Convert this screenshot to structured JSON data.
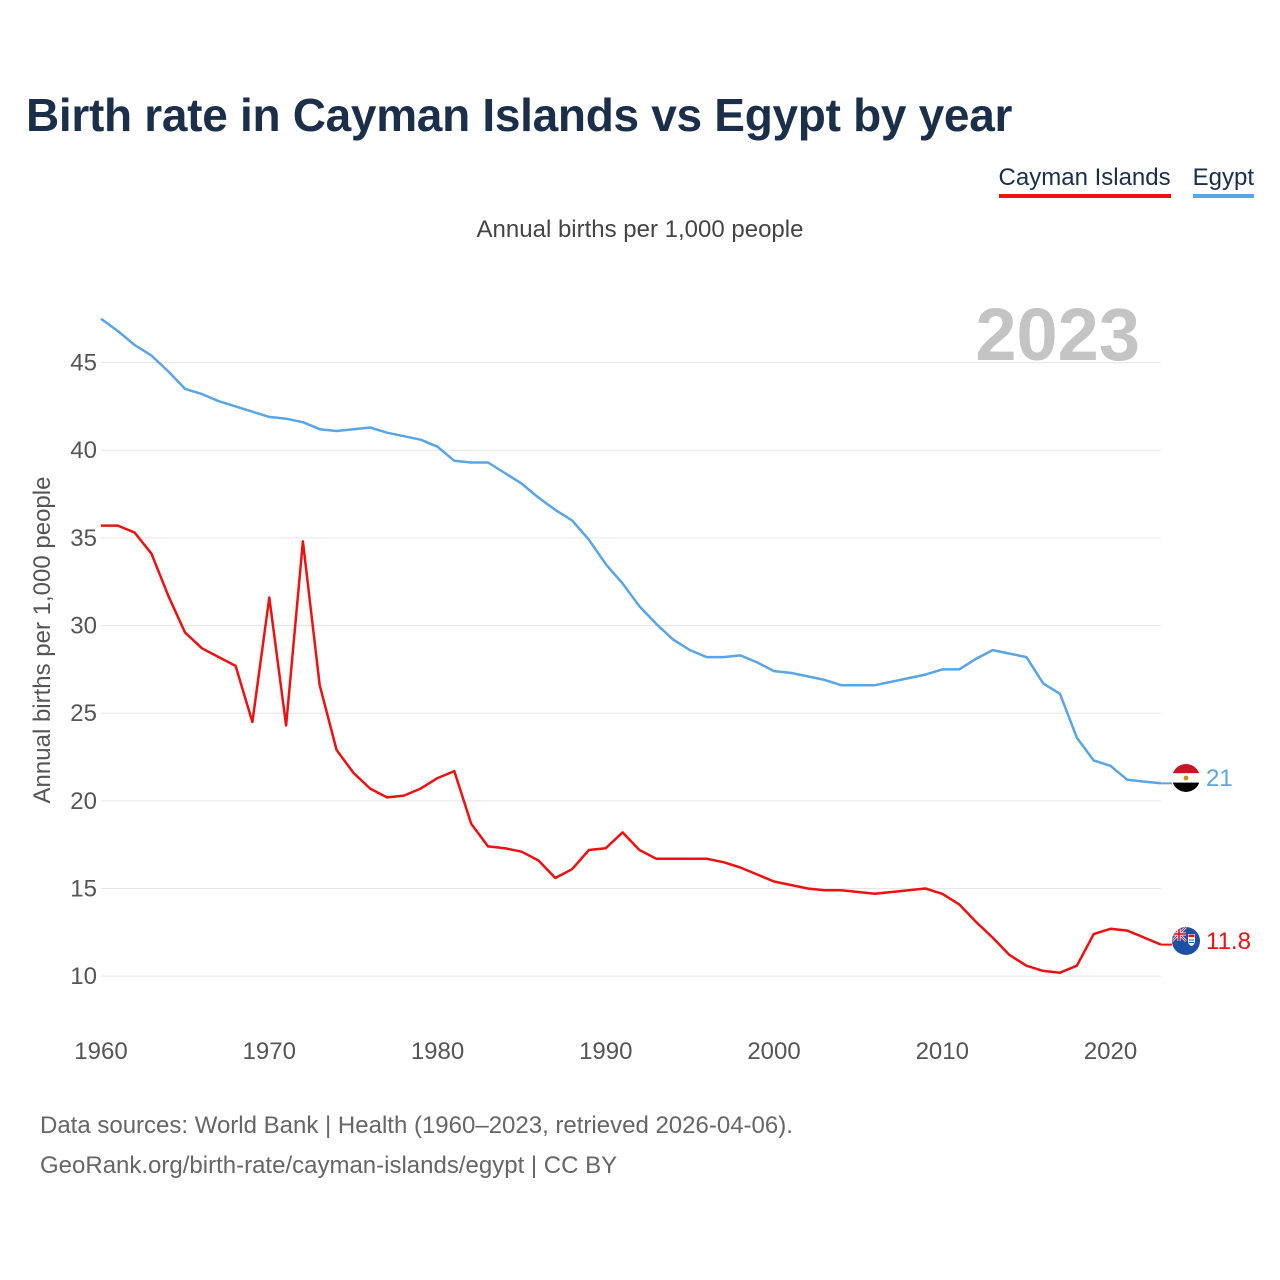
{
  "title": "Birth rate in Cayman Islands vs Egypt by year",
  "legend": [
    {
      "label": "Cayman Islands",
      "color": "#ee1111"
    },
    {
      "label": "Egypt",
      "color": "#5aa5e6"
    }
  ],
  "subtitle": "Annual births per 1,000 people",
  "year_label": "2023",
  "footer": {
    "line1": "Data sources: World Bank | Health (1960–2023, retrieved 2026-04-06).",
    "line2": "GeoRank.org/birth-rate/cayman-islands/egypt | CC BY"
  },
  "chart_data": {
    "type": "line",
    "title": "Birth rate in Cayman Islands vs Egypt by year",
    "xlabel": "",
    "ylabel": "Annual births per 1,000 people",
    "xlim": [
      1960,
      2023
    ],
    "ylim": [
      7.5,
      48
    ],
    "x_ticks": [
      1960,
      1970,
      1980,
      1990,
      2000,
      2010,
      2020
    ],
    "y_ticks": [
      10,
      15,
      20,
      25,
      30,
      35,
      40,
      45
    ],
    "grid": true,
    "legend_position": "top-right",
    "x": [
      1960,
      1961,
      1962,
      1963,
      1964,
      1965,
      1966,
      1967,
      1968,
      1969,
      1970,
      1971,
      1972,
      1973,
      1974,
      1975,
      1976,
      1977,
      1978,
      1979,
      1980,
      1981,
      1982,
      1983,
      1984,
      1985,
      1986,
      1987,
      1988,
      1989,
      1990,
      1991,
      1992,
      1993,
      1994,
      1995,
      1996,
      1997,
      1998,
      1999,
      2000,
      2001,
      2002,
      2003,
      2004,
      2005,
      2006,
      2007,
      2008,
      2009,
      2010,
      2011,
      2012,
      2013,
      2014,
      2015,
      2016,
      2017,
      2018,
      2019,
      2020,
      2021,
      2022,
      2023
    ],
    "series": [
      {
        "name": "Cayman Islands",
        "color": "#ee1111",
        "end_label": "11.8",
        "flag": "cayman",
        "values": [
          35.7,
          35.7,
          35.3,
          34.1,
          31.7,
          29.6,
          28.7,
          28.2,
          27.7,
          24.5,
          31.6,
          24.3,
          34.8,
          26.6,
          22.9,
          21.6,
          20.7,
          20.2,
          20.3,
          20.7,
          21.3,
          21.7,
          18.7,
          17.4,
          17.3,
          17.1,
          16.6,
          15.6,
          16.1,
          17.2,
          17.3,
          18.2,
          17.2,
          16.7,
          16.7,
          16.7,
          16.7,
          16.5,
          16.2,
          15.8,
          15.4,
          15.2,
          15.0,
          14.9,
          14.9,
          14.8,
          14.7,
          14.8,
          14.9,
          15.0,
          14.7,
          14.1,
          13.1,
          12.2,
          11.2,
          10.6,
          10.3,
          10.2,
          10.6,
          12.4,
          12.7,
          12.6,
          12.2,
          11.8
        ]
      },
      {
        "name": "Egypt",
        "color": "#5aa5e6",
        "end_label": "21",
        "flag": "egypt",
        "values": [
          47.5,
          46.8,
          46.0,
          45.4,
          44.5,
          43.5,
          43.2,
          42.8,
          42.5,
          42.2,
          41.9,
          41.8,
          41.6,
          41.2,
          41.1,
          41.2,
          41.3,
          41.0,
          40.8,
          40.6,
          40.2,
          39.4,
          39.3,
          39.3,
          38.7,
          38.1,
          37.3,
          36.6,
          36.0,
          34.9,
          33.5,
          32.4,
          31.1,
          30.1,
          29.2,
          28.6,
          28.2,
          28.2,
          28.3,
          27.9,
          27.4,
          27.3,
          27.1,
          26.9,
          26.6,
          26.6,
          26.6,
          26.8,
          27.0,
          27.2,
          27.5,
          27.5,
          28.1,
          28.6,
          28.4,
          28.2,
          26.7,
          26.1,
          23.6,
          22.3,
          22.0,
          21.2,
          21.1,
          21.0
        ]
      }
    ]
  }
}
